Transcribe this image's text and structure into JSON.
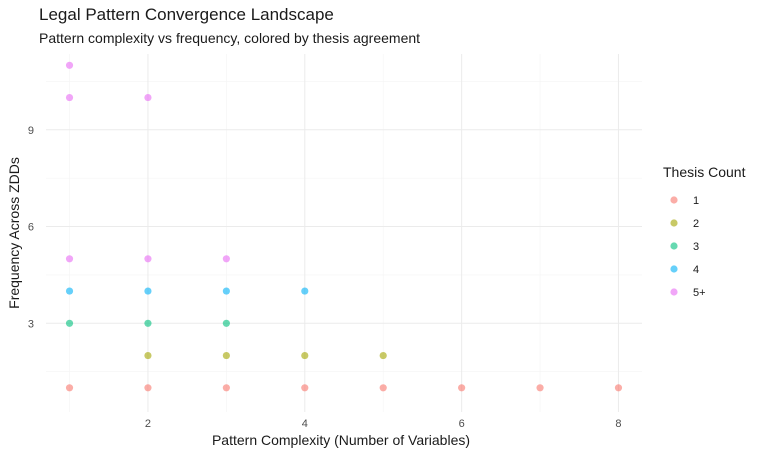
{
  "chart_data": {
    "type": "scatter",
    "title": "Legal Pattern Convergence Landscape",
    "subtitle": "Pattern complexity vs frequency, colored by thesis agreement",
    "xlabel": "Pattern Complexity (Number of Variables)",
    "ylabel": "Frequency Across ZDDs",
    "xlim": [
      0.7,
      8.3
    ],
    "ylim": [
      0.25,
      11.35
    ],
    "x_ticks": [
      2,
      4,
      6,
      8
    ],
    "y_ticks": [
      3,
      6,
      9
    ],
    "grid": true,
    "legend": {
      "title": "Thesis Count",
      "position": "right"
    },
    "series": [
      {
        "name": "1",
        "color": "#F8766D",
        "points": [
          [
            1,
            1
          ],
          [
            2,
            1
          ],
          [
            3,
            1
          ],
          [
            4,
            1
          ],
          [
            5,
            1
          ],
          [
            6,
            1
          ],
          [
            7,
            1
          ],
          [
            8,
            1
          ]
        ]
      },
      {
        "name": "2",
        "color": "#A3A500",
        "points": [
          [
            2,
            2
          ],
          [
            3,
            2
          ],
          [
            4,
            2
          ],
          [
            5,
            2
          ]
        ]
      },
      {
        "name": "3",
        "color": "#00BF7D",
        "points": [
          [
            1,
            3
          ],
          [
            2,
            3
          ],
          [
            3,
            3
          ]
        ]
      },
      {
        "name": "4",
        "color": "#00B0F6",
        "points": [
          [
            1,
            4
          ],
          [
            2,
            4
          ],
          [
            3,
            4
          ],
          [
            4,
            4
          ]
        ]
      },
      {
        "name": "5+",
        "color": "#E76BF3",
        "points": [
          [
            1,
            5
          ],
          [
            2,
            5
          ],
          [
            3,
            5
          ],
          [
            1,
            10
          ],
          [
            2,
            10
          ],
          [
            1,
            11
          ]
        ]
      }
    ]
  }
}
